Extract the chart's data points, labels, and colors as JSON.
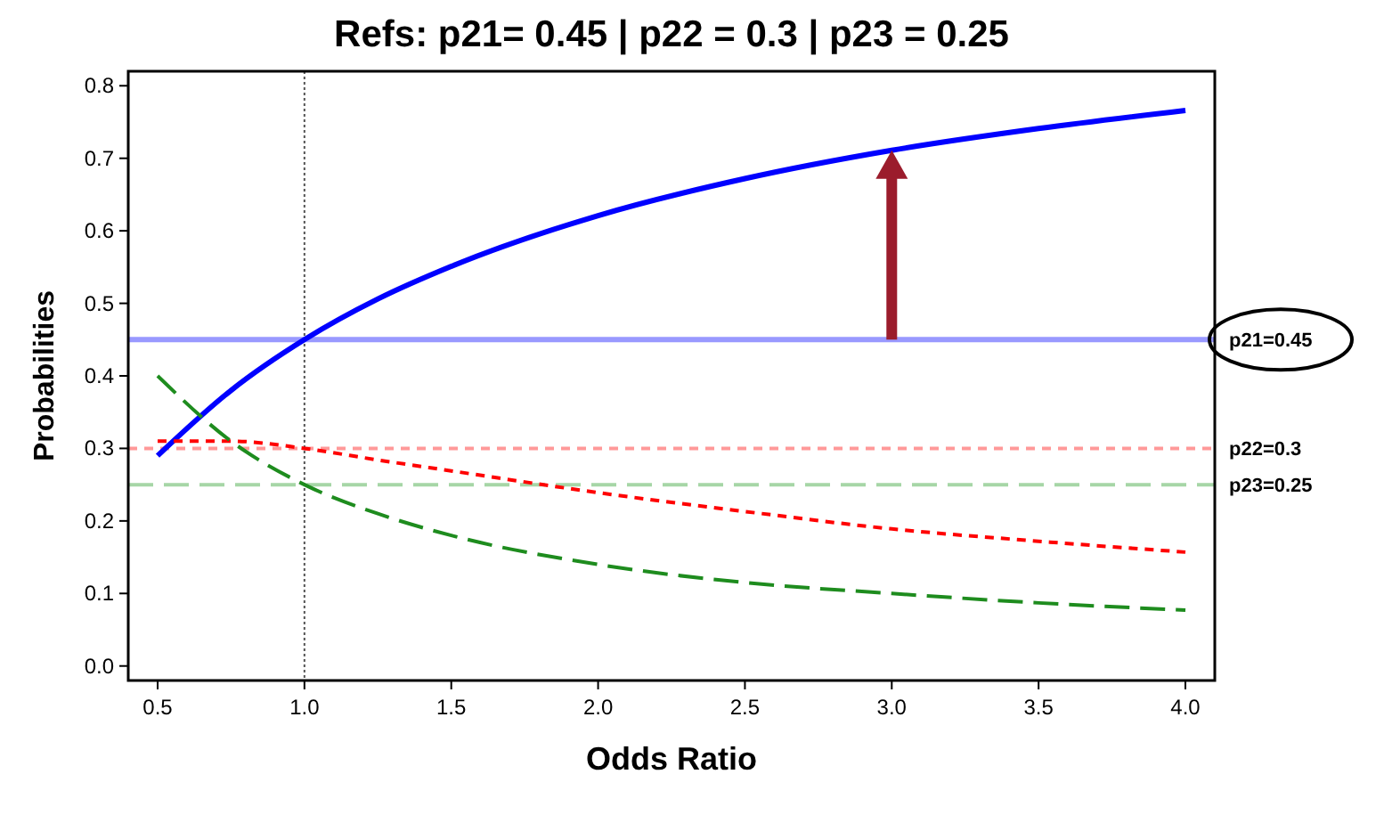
{
  "chart_data": {
    "type": "line",
    "title": "Refs: p21= 0.45 | p22 = 0.3 | p23 = 0.25",
    "xlabel": "Odds Ratio",
    "ylabel": "Probabilities",
    "x": [
      0.5,
      0.75,
      1,
      1.25,
      1.5,
      2,
      2.5,
      3,
      3.5,
      4
    ],
    "series": [
      {
        "color": "#0000ff",
        "line_style": "solid",
        "values": [
          0.29,
          0.38,
          0.45,
          0.506,
          0.551,
          0.621,
          0.672,
          0.711,
          0.741,
          0.766
        ]
      },
      {
        "color": "#ff0000",
        "line_style": "dotted",
        "values": [
          0.31,
          0.31,
          0.3,
          0.284,
          0.269,
          0.239,
          0.213,
          0.189,
          0.172,
          0.157
        ]
      },
      {
        "color": "#1e8c1e",
        "line_style": "dashed",
        "values": [
          0.4,
          0.31,
          0.25,
          0.21,
          0.18,
          0.14,
          0.115,
          0.1,
          0.087,
          0.077
        ]
      }
    ],
    "xlim": [
      0.4,
      4.1
    ],
    "ylim": [
      -0.02,
      0.82
    ],
    "xticks": [
      {
        "value": 0.5,
        "label": "0.5"
      },
      {
        "value": 1,
        "label": "1.0"
      },
      {
        "value": 1.5,
        "label": "1.5"
      },
      {
        "value": 2,
        "label": "2.0"
      },
      {
        "value": 2.5,
        "label": "2.5"
      },
      {
        "value": 3,
        "label": "3.0"
      },
      {
        "value": 3.5,
        "label": "3.5"
      },
      {
        "value": 4,
        "label": "4.0"
      }
    ],
    "yticks": [
      {
        "value": 0,
        "label": "0.0"
      },
      0.1,
      0.2,
      0.3,
      0.4,
      0.5,
      0.6,
      0.7,
      0.8
    ],
    "ref_lines": [
      {
        "axis": "y",
        "value": 0.45,
        "label": "p21=0.45",
        "color": "#9999ff",
        "line_style": "solid"
      },
      {
        "axis": "y",
        "value": 0.3,
        "label": "p22=0.3",
        "color": "#ff9999",
        "line_style": "dotted"
      },
      {
        "axis": "y",
        "value": 0.25,
        "label": "p23=0.25",
        "color": "#a6d6a6",
        "line_style": "dashed"
      },
      {
        "axis": "x",
        "value": 1,
        "label": null,
        "color": "#555555",
        "line_style": "dotted"
      }
    ],
    "grid": false,
    "marker": "none"
  }
}
